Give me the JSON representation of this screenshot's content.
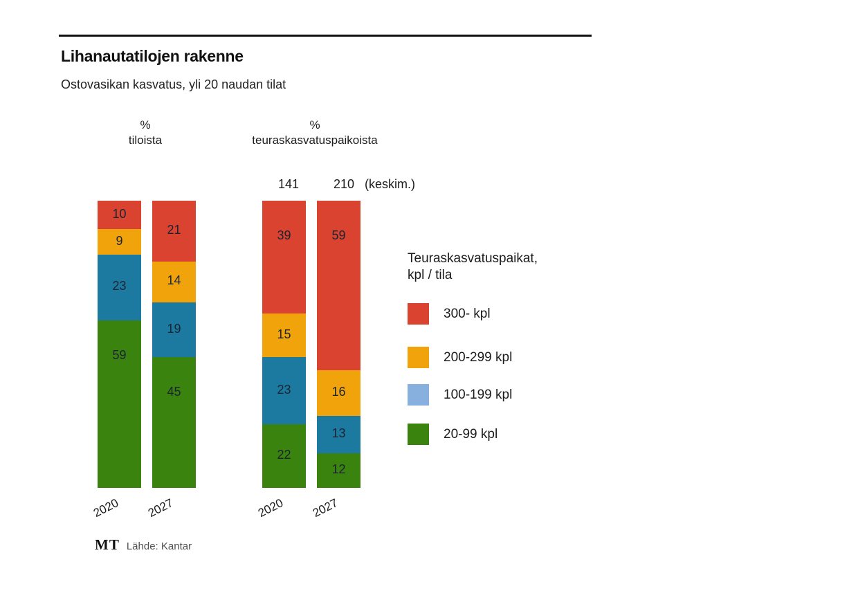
{
  "header": {
    "title": "Lihanautatilojen rakenne",
    "subtitle": "Ostovasikan kasvatus, yli 20 naudan tilat"
  },
  "chart_data": {
    "type": "bar",
    "stacked": true,
    "value_unit": "%",
    "series_top_to_bottom": [
      {
        "name": "300- kpl",
        "color": "#d9432f"
      },
      {
        "name": "200-299 kpl",
        "color": "#f1a30c"
      },
      {
        "name": "100-199 kpl",
        "color": "#1c7aa0"
      },
      {
        "name": "20-99 kpl",
        "color": "#3a830f"
      }
    ],
    "groups": [
      {
        "header_unit": "%",
        "header_label": "tiloista",
        "bars": [
          {
            "category": "2020",
            "values": [
              10,
              9,
              23,
              59
            ]
          },
          {
            "category": "2027",
            "values": [
              21,
              14,
              19,
              45
            ]
          }
        ]
      },
      {
        "header_unit": "%",
        "header_label": "teuraskasvatuspaikoista",
        "avg_row": {
          "values": [
            "141",
            "210"
          ],
          "suffix": "(keskim.)"
        },
        "bars": [
          {
            "category": "2020",
            "values": [
              39,
              15,
              23,
              22
            ]
          },
          {
            "category": "2027",
            "values": [
              59,
              16,
              13,
              12
            ]
          }
        ]
      }
    ],
    "legend": {
      "title_line1": "Teuraskasvatuspaikat,",
      "title_line2": "kpl / tila",
      "position": "right",
      "entries": [
        {
          "label": "300- kpl",
          "color": "#d9432f"
        },
        {
          "label": "200-299 kpl",
          "color": "#f1a30c"
        },
        {
          "label": "100-199 kpl",
          "color": "#88b0de"
        },
        {
          "label": "20-99 kpl",
          "color": "#3a830f"
        }
      ]
    }
  },
  "footer": {
    "logo": "MT",
    "source": "Lähde: Kantar"
  }
}
